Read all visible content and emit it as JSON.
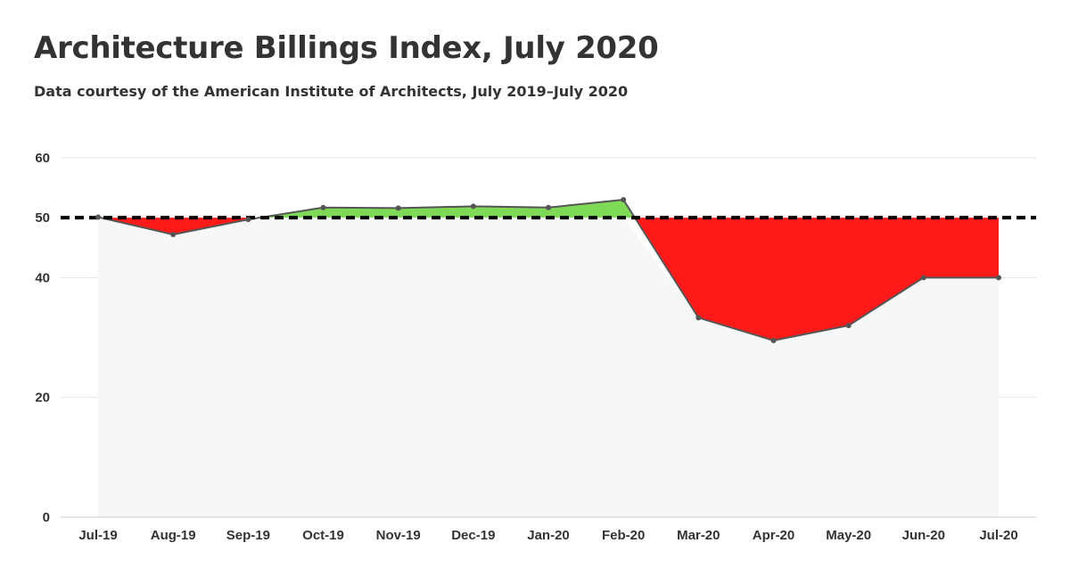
{
  "header": {
    "title": "Architecture Billings Index, July 2020",
    "subtitle": "Data courtesy of the American Institute of Architects, July 2019–July 2020"
  },
  "colors": {
    "above_threshold": "#7ed957",
    "below_threshold": "#ff1a1a",
    "line": "#555555",
    "plot_background": "#f7f7f7",
    "threshold_line": "#000000",
    "gridline": "#e6e6e6",
    "text": "#333333"
  },
  "chart_data": {
    "type": "area",
    "title": "Architecture Billings Index, July 2020",
    "subtitle": "Data courtesy of the American Institute of Architects, July 2019–July 2020",
    "xlabel": "",
    "ylabel": "",
    "categories": [
      "Jul-19",
      "Aug-19",
      "Sep-19",
      "Oct-19",
      "Nov-19",
      "Dec-19",
      "Jan-20",
      "Feb-20",
      "Mar-20",
      "Apr-20",
      "May-20",
      "Jun-20",
      "Jul-20"
    ],
    "series": [
      {
        "name": "Architecture Billings Index",
        "values": [
          50.1,
          47.2,
          49.7,
          51.7,
          51.6,
          51.9,
          51.7,
          53.0,
          33.3,
          29.5,
          32.0,
          40.0,
          40.0
        ]
      }
    ],
    "threshold": 50,
    "ylim": [
      0,
      60
    ],
    "yticks": [
      0,
      20,
      40,
      50,
      60
    ],
    "ytick_labels": [
      "0",
      "20",
      "40",
      "50",
      "60"
    ],
    "grid": true,
    "legend": "none"
  }
}
